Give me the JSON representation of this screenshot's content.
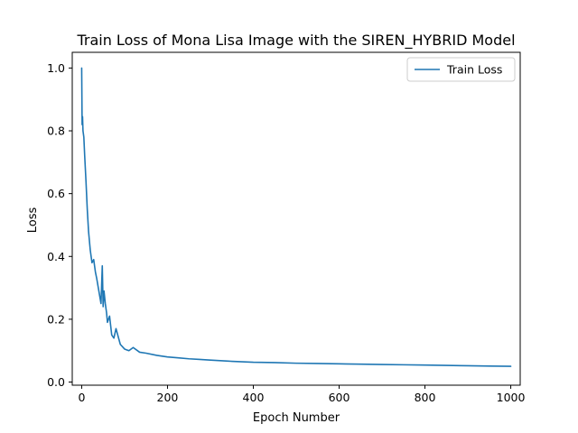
{
  "chart_data": {
    "type": "line",
    "title": "Train Loss of Mona Lisa Image with the SIREN_HYBRID Model",
    "xlabel": "Epoch Number",
    "ylabel": "Loss",
    "xlim": [
      -22,
      1022
    ],
    "ylim": [
      -0.01,
      1.05
    ],
    "xticks": [
      0,
      200,
      400,
      600,
      800,
      1000
    ],
    "yticks": [
      0.0,
      0.2,
      0.4,
      0.6,
      0.8,
      1.0
    ],
    "xtick_labels": [
      "0",
      "200",
      "400",
      "600",
      "800",
      "1000"
    ],
    "ytick_labels": [
      "0.0",
      "0.2",
      "0.4",
      "0.6",
      "0.8",
      "1.0"
    ],
    "grid": false,
    "legend": {
      "position": "top-right"
    },
    "series": [
      {
        "name": "Train Loss",
        "color": "#1f77b4",
        "x": [
          0,
          1,
          2,
          3,
          5,
          7,
          10,
          13,
          16,
          20,
          24,
          28,
          32,
          35,
          40,
          45,
          48,
          50,
          52,
          55,
          58,
          60,
          65,
          70,
          75,
          80,
          90,
          100,
          110,
          120,
          135,
          150,
          175,
          200,
          225,
          250,
          275,
          300,
          350,
          400,
          450,
          500,
          550,
          600,
          650,
          700,
          750,
          800,
          850,
          900,
          950,
          1000
        ],
        "y": [
          1.0,
          0.82,
          0.845,
          0.8,
          0.78,
          0.72,
          0.64,
          0.55,
          0.48,
          0.42,
          0.38,
          0.39,
          0.35,
          0.33,
          0.29,
          0.25,
          0.37,
          0.24,
          0.29,
          0.25,
          0.22,
          0.19,
          0.21,
          0.15,
          0.14,
          0.17,
          0.12,
          0.105,
          0.1,
          0.11,
          0.095,
          0.092,
          0.085,
          0.08,
          0.077,
          0.074,
          0.072,
          0.07,
          0.066,
          0.063,
          0.062,
          0.06,
          0.059,
          0.058,
          0.057,
          0.056,
          0.055,
          0.054,
          0.053,
          0.052,
          0.051,
          0.05
        ]
      }
    ]
  }
}
